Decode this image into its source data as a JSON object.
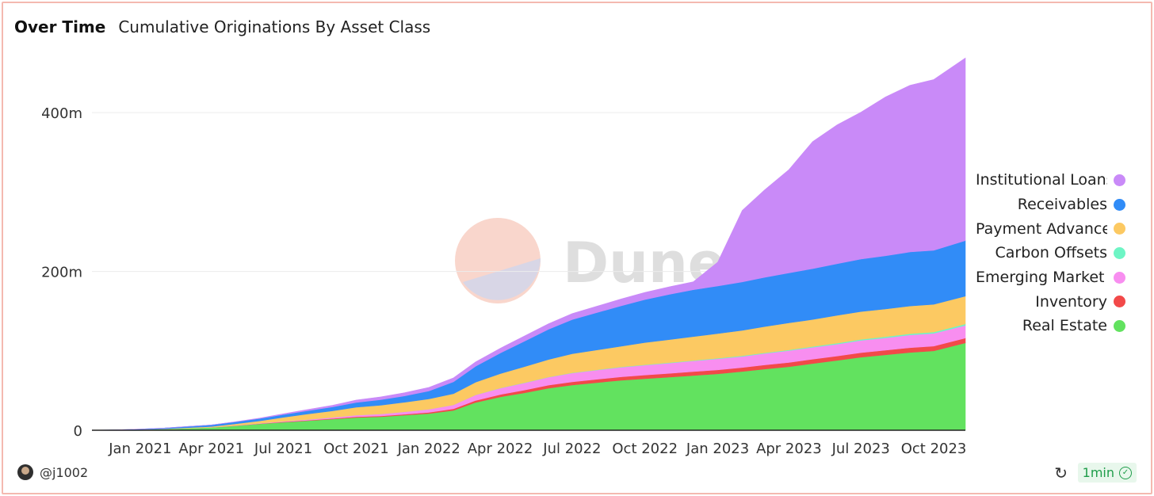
{
  "header": {
    "tab_title": "Over Time",
    "chart_title": "Cumulative Originations By Asset Class"
  },
  "watermark": {
    "text": "Dune"
  },
  "footer": {
    "user": "@j1002",
    "refresh_icon": "refresh-icon",
    "age": "1min",
    "age_icon": "check-circle-icon"
  },
  "chart_data": {
    "type": "area",
    "stacked": true,
    "title": "Cumulative Originations By Asset Class",
    "xlabel": "",
    "ylabel": "",
    "x_range": [
      "2020-11-01",
      "2023-11-10"
    ],
    "ylim": [
      0,
      460000000
    ],
    "y_ticks": [
      0,
      200000000,
      400000000
    ],
    "y_tick_labels": [
      "0",
      "200m",
      "400m"
    ],
    "x_ticks": [
      "2021-01-01",
      "2021-04-01",
      "2021-07-01",
      "2021-10-01",
      "2022-01-01",
      "2022-04-01",
      "2022-07-01",
      "2022-10-01",
      "2023-01-01",
      "2023-04-01",
      "2023-07-01",
      "2023-10-01"
    ],
    "x_tick_labels": [
      "Jan 2021",
      "Apr 2021",
      "Jul 2021",
      "Oct 2021",
      "Jan 2022",
      "Apr 2022",
      "Jul 2022",
      "Oct 2022",
      "Jan 2023",
      "Apr 2023",
      "Jul 2023",
      "Oct 2023"
    ],
    "grid": "horizontal",
    "legend_position": "right",
    "x": [
      "2020-11-01",
      "2020-12-01",
      "2021-01-01",
      "2021-02-01",
      "2021-03-01",
      "2021-04-01",
      "2021-05-01",
      "2021-06-01",
      "2021-07-01",
      "2021-08-01",
      "2021-09-01",
      "2021-10-01",
      "2021-11-01",
      "2021-12-01",
      "2022-01-01",
      "2022-02-01",
      "2022-03-01",
      "2022-04-01",
      "2022-05-01",
      "2022-06-01",
      "2022-07-01",
      "2022-08-01",
      "2022-09-01",
      "2022-10-01",
      "2022-11-01",
      "2022-12-01",
      "2023-01-01",
      "2023-02-01",
      "2023-03-01",
      "2023-04-01",
      "2023-05-01",
      "2023-06-01",
      "2023-07-01",
      "2023-08-01",
      "2023-09-01",
      "2023-10-01",
      "2023-11-10"
    ],
    "series": [
      {
        "name": "Real Estate",
        "color": "#62e25f",
        "values": [
          0,
          0.3,
          0.8,
          1.5,
          2.5,
          3.5,
          5.5,
          8,
          10,
          12,
          14,
          16,
          17,
          19,
          21,
          25,
          35,
          42,
          47,
          53,
          57,
          60,
          63,
          65,
          67,
          69,
          71,
          74,
          77,
          80,
          84,
          88,
          92,
          95,
          98,
          100,
          110
        ]
      },
      {
        "name": "Inventory",
        "color": "#f24949",
        "values": [
          0,
          0,
          0,
          0,
          0,
          0,
          0.2,
          0.3,
          0.5,
          0.6,
          0.8,
          1,
          1,
          1.2,
          1.5,
          2,
          2.5,
          3,
          3.5,
          3.8,
          4,
          4.2,
          4.3,
          4.5,
          4.6,
          4.8,
          5,
          5,
          5.2,
          5.3,
          5.5,
          5.5,
          5.7,
          5.8,
          6,
          6,
          6
        ]
      },
      {
        "name": "Emerging Market Lending",
        "color": "#f88ef0",
        "values": [
          0,
          0,
          0,
          0,
          0.1,
          0.2,
          0.3,
          0.5,
          0.8,
          1,
          1.5,
          2,
          2.5,
          3,
          4,
          5,
          7,
          8,
          9,
          10,
          11,
          11.5,
          12,
          12.5,
          13,
          13.5,
          14,
          14,
          14.5,
          15,
          15,
          15,
          15.5,
          15.5,
          16,
          16,
          16
        ]
      },
      {
        "name": "Carbon Offsets",
        "color": "#6ef5c5",
        "values": [
          0,
          0,
          0,
          0,
          0,
          0,
          0,
          0,
          0,
          0,
          0,
          0,
          0,
          0,
          0,
          0,
          0.1,
          0.2,
          0.3,
          0.3,
          0.4,
          0.4,
          0.5,
          0.5,
          0.6,
          0.6,
          0.7,
          0.8,
          0.8,
          0.9,
          1,
          1.2,
          1.3,
          1.4,
          1.5,
          1.6,
          1.8
        ]
      },
      {
        "name": "Payment Advances",
        "color": "#fcc962",
        "values": [
          0,
          0,
          0.1,
          0.3,
          0.6,
          1,
          2,
          3,
          5,
          7,
          8,
          10,
          11,
          12,
          13,
          14,
          16,
          18,
          20,
          22,
          24,
          25,
          26,
          28,
          29,
          30,
          31,
          32,
          33,
          34,
          34,
          35,
          35,
          35,
          35,
          35,
          35
        ]
      },
      {
        "name": "Receivables",
        "color": "#318cf7",
        "values": [
          0,
          0.2,
          0.5,
          1,
          1.5,
          2,
          2.5,
          3,
          3.5,
          4,
          5,
          6,
          7,
          8,
          10,
          15,
          20,
          26,
          32,
          38,
          43,
          47,
          51,
          54,
          57,
          59,
          60,
          61,
          62,
          63,
          64,
          65,
          66,
          67,
          68,
          68,
          70
        ]
      },
      {
        "name": "Institutional Loans",
        "color": "#c98af8",
        "values": [
          0,
          0,
          0,
          0,
          0,
          0,
          0.2,
          0.5,
          1,
          1.5,
          2,
          3,
          3.5,
          4,
          4.5,
          5,
          5.5,
          6,
          6.5,
          7,
          7.5,
          8,
          8.5,
          9,
          9.5,
          10,
          30,
          90,
          110,
          130,
          160,
          175,
          185,
          200,
          210,
          215,
          230
        ]
      }
    ],
    "legend_order": [
      "Institutional Loans",
      "Receivables",
      "Payment Advances",
      "Carbon Offsets",
      "Emerging Market Lending",
      "Inventory",
      "Real Estate"
    ],
    "legend_labels": [
      "Institutional Loans",
      "Receivables",
      "Payment Advances",
      "Carbon Offsets",
      "Emerging Market L",
      "Inventory",
      "Real Estate"
    ]
  }
}
